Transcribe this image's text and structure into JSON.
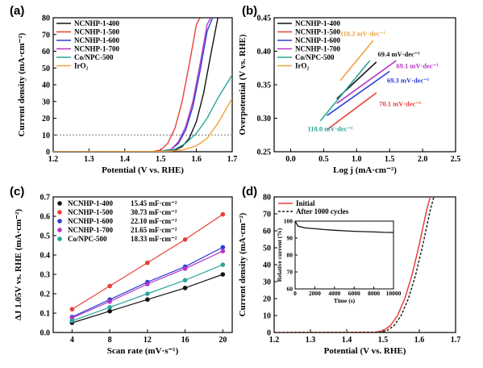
{
  "series_styles": [
    {
      "name": "NCNHP-1-400",
      "color": "#111111"
    },
    {
      "name": "NCNHP-1-500",
      "color": "#e8403a"
    },
    {
      "name": "NCNHP-1-600",
      "color": "#2a3fd6"
    },
    {
      "name": "NCNHP-1-700",
      "color": "#b534c4"
    },
    {
      "name": "Co/NPC-500",
      "color": "#2aa59a"
    },
    {
      "name": "IrO2",
      "color": "#f2a23a"
    }
  ],
  "chart_data": [
    {
      "panel": "(a)",
      "type": "line",
      "xlabel": "Potential (V vs. RHE)",
      "ylabel": "Current density (mA·cm⁻²)",
      "xlim": [
        1.2,
        1.7
      ],
      "ylim": [
        0,
        80
      ],
      "xticks": [
        "1.2",
        "1.3",
        "1.4",
        "1.5",
        "1.6",
        "1.7"
      ],
      "yticks": [
        "0",
        "10",
        "20",
        "30",
        "40",
        "50",
        "60",
        "70",
        "80"
      ],
      "reference_line_y": 10,
      "legend": [
        "NCNHP-1-400",
        "NCNHP-1-500",
        "NCNHP-1-600",
        "NCNHP-1-700",
        "Co/NPC-500",
        "IrO₂"
      ],
      "series": [
        {
          "name": "NCNHP-1-400",
          "x": [
            1.2,
            1.5,
            1.54,
            1.56,
            1.58,
            1.6,
            1.62,
            1.64,
            1.66
          ],
          "y": [
            0,
            0.2,
            1,
            3,
            8,
            18,
            35,
            58,
            80
          ]
        },
        {
          "name": "NCNHP-1-500",
          "x": [
            1.2,
            1.48,
            1.5,
            1.52,
            1.54,
            1.56,
            1.58,
            1.6,
            1.61
          ],
          "y": [
            0,
            0.2,
            1,
            5,
            14,
            30,
            52,
            76,
            80
          ]
        },
        {
          "name": "NCNHP-1-600",
          "x": [
            1.2,
            1.5,
            1.53,
            1.55,
            1.57,
            1.59,
            1.61,
            1.63,
            1.645
          ],
          "y": [
            0,
            0.2,
            1.5,
            5,
            13,
            27,
            48,
            72,
            80
          ]
        },
        {
          "name": "NCNHP-1-700",
          "x": [
            1.2,
            1.5,
            1.53,
            1.55,
            1.57,
            1.59,
            1.61,
            1.63,
            1.64
          ],
          "y": [
            0,
            0.2,
            1.5,
            6,
            15,
            30,
            52,
            76,
            80
          ]
        },
        {
          "name": "Co/NPC-500",
          "x": [
            1.2,
            1.5,
            1.54,
            1.57,
            1.6,
            1.63,
            1.66,
            1.7
          ],
          "y": [
            0,
            0.2,
            1.5,
            5,
            11,
            20,
            32,
            46
          ]
        },
        {
          "name": "IrO2",
          "x": [
            1.2,
            1.52,
            1.56,
            1.6,
            1.63,
            1.66,
            1.7
          ],
          "y": [
            0,
            0.2,
            1,
            3.5,
            8,
            17,
            32
          ]
        }
      ]
    },
    {
      "panel": "(b)",
      "type": "line",
      "xlabel": "Log j (mA·cm⁻²)",
      "ylabel": "Overpotential (V vs. RHE)",
      "xlim": [
        -0.25,
        2.5
      ],
      "ylim": [
        0.25,
        0.45
      ],
      "xticks": [
        "0.0",
        "0.5",
        "1.0",
        "1.5",
        "2.0",
        "2.5"
      ],
      "yticks": [
        "0.25",
        "0.30",
        "0.35",
        "0.40",
        "0.45"
      ],
      "legend": [
        "NCNHP-1-400",
        "NCNHP-1-500",
        "NCNHP-1-600",
        "NCNHP-1-700",
        "Co/NPC-500",
        "IrO₂"
      ],
      "series": [
        {
          "name": "NCNHP-1-400",
          "x": [
            0.7,
            1.3
          ],
          "y": [
            0.329,
            0.384
          ],
          "label": "69.4 mV·dec⁻¹"
        },
        {
          "name": "NCNHP-1-500",
          "x": [
            0.55,
            1.3
          ],
          "y": [
            0.283,
            0.338
          ],
          "label": "70.1 mV·dec⁻¹"
        },
        {
          "name": "NCNHP-1-600",
          "x": [
            0.55,
            1.5
          ],
          "y": [
            0.304,
            0.37
          ],
          "label": "69.3 mV·dec⁻¹"
        },
        {
          "name": "NCNHP-1-700",
          "x": [
            0.7,
            1.6
          ],
          "y": [
            0.322,
            0.386
          ],
          "label": "69.1 mV·dec⁻¹"
        },
        {
          "name": "Co/NPC-500",
          "x": [
            0.45,
            1.2
          ],
          "y": [
            0.296,
            0.386
          ],
          "label": "118.0 mV·dec⁻¹"
        },
        {
          "name": "IrO2",
          "x": [
            0.75,
            1.25
          ],
          "y": [
            0.356,
            0.416
          ],
          "label": "118.2 mV·dec⁻¹"
        }
      ]
    },
    {
      "panel": "(c)",
      "type": "scatter",
      "xlabel": "Scan rate (mV·s⁻¹)",
      "ylabel": "ΔJ 1.05V vs. RHE (mA·cm⁻²)",
      "xlim": [
        2,
        21
      ],
      "ylim": [
        0,
        0.7
      ],
      "xticks": [
        "4",
        "8",
        "12",
        "16",
        "20"
      ],
      "yticks": [
        "0.0",
        "0.1",
        "0.2",
        "0.3",
        "0.4",
        "0.5",
        "0.6",
        "0.7"
      ],
      "x": [
        4,
        8,
        12,
        16,
        20
      ],
      "series": [
        {
          "name": "NCNHP-1-400",
          "values": [
            0.05,
            0.11,
            0.17,
            0.23,
            0.3
          ],
          "label": "15.45 mF·cm⁻²"
        },
        {
          "name": "NCNHP-1-500",
          "values": [
            0.12,
            0.24,
            0.36,
            0.48,
            0.61
          ],
          "label": "30.73 mF·cm⁻²"
        },
        {
          "name": "NCNHP-1-600",
          "values": [
            0.08,
            0.17,
            0.26,
            0.34,
            0.44
          ],
          "label": "22.10 mF·cm⁻²"
        },
        {
          "name": "NCNHP-1-700",
          "values": [
            0.075,
            0.16,
            0.25,
            0.33,
            0.42
          ],
          "label": "21.65 mF·cm⁻²"
        },
        {
          "name": "Co/NPC-500",
          "values": [
            0.06,
            0.13,
            0.2,
            0.27,
            0.35
          ],
          "label": "18.33 mF·cm⁻²"
        }
      ]
    },
    {
      "panel": "(d)",
      "type": "line",
      "xlabel": "Potential (V vs. RHE)",
      "ylabel": "Current density (mA·cm⁻²)",
      "xlim": [
        1.2,
        1.7
      ],
      "ylim": [
        0,
        80
      ],
      "xticks": [
        "1.2",
        "1.3",
        "1.4",
        "1.5",
        "1.6",
        "1.7"
      ],
      "yticks": [
        "0",
        "10",
        "20",
        "30",
        "40",
        "50",
        "60",
        "70",
        "80"
      ],
      "legend": [
        "Initial",
        "After 1000 cycles"
      ],
      "series": [
        {
          "name": "Initial",
          "x": [
            1.2,
            1.48,
            1.5,
            1.52,
            1.54,
            1.56,
            1.58,
            1.6,
            1.62,
            1.63
          ],
          "y": [
            0,
            0.2,
            1,
            4,
            10,
            20,
            34,
            52,
            72,
            80
          ]
        },
        {
          "name": "After 1000 cycles",
          "x": [
            1.2,
            1.49,
            1.51,
            1.53,
            1.55,
            1.57,
            1.59,
            1.61,
            1.63,
            1.64
          ],
          "y": [
            0,
            0.2,
            1,
            4,
            10,
            20,
            34,
            52,
            72,
            80
          ]
        }
      ],
      "inset": {
        "xlabel": "Time (s)",
        "ylabel": "Relative current (%)",
        "xlim": [
          0,
          10000
        ],
        "ylim": [
          60,
          100
        ],
        "xticks": [
          "0",
          "2000",
          "4000",
          "6000",
          "8000",
          "10000"
        ],
        "yticks": [
          "60",
          "70",
          "80",
          "90",
          "100"
        ],
        "x": [
          0,
          300,
          1000,
          2000,
          3000,
          4000,
          5000,
          6000,
          7000,
          8000,
          9000,
          10000
        ],
        "y": [
          100,
          97,
          96,
          95.5,
          95,
          94.6,
          94.3,
          94,
          93.8,
          93.6,
          93.4,
          93.3
        ]
      }
    }
  ]
}
